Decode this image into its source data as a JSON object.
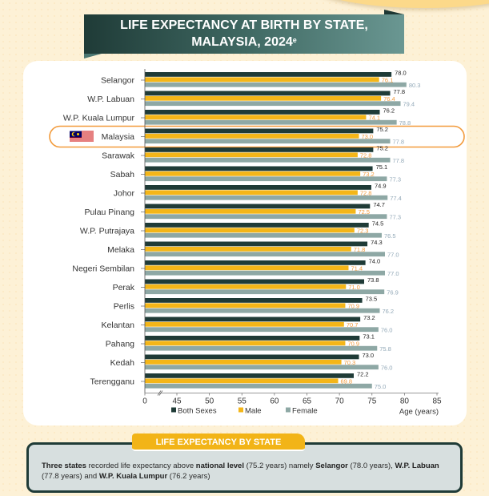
{
  "header": {
    "title_line1": "LIFE EXPECTANCY AT BIRTH BY STATE,",
    "title_line2": "MALAYSIA, 2024",
    "title_superscript": "e"
  },
  "chart_data": {
    "type": "bar",
    "orientation": "horizontal",
    "title": "LIFE EXPECTANCY AT BIRTH BY STATE, MALAYSIA, 2024e",
    "xlabel": "Age (years)",
    "ylabel": "",
    "categories": [
      "Selangor",
      "W.P. Labuan",
      "W.P. Kuala Lumpur",
      "Malaysia",
      "Sarawak",
      "Sabah",
      "Johor",
      "Pulau Pinang",
      "W.P. Putrajaya",
      "Melaka",
      "Negeri Sembilan",
      "Perak",
      "Perlis",
      "Kelantan",
      "Pahang",
      "Kedah",
      "Terengganu"
    ],
    "highlighted_category": "Malaysia",
    "series": [
      {
        "name": "Both Sexes",
        "color": "#1f3b37",
        "label_color": "#222222",
        "values": [
          78.0,
          77.8,
          76.2,
          75.2,
          75.2,
          75.1,
          74.9,
          74.7,
          74.5,
          74.3,
          74.0,
          73.8,
          73.5,
          73.2,
          73.1,
          73.0,
          72.2
        ]
      },
      {
        "name": "Male",
        "color": "#f4b618",
        "label_color": "#f29a3a",
        "values": [
          76.1,
          76.4,
          74.1,
          73.0,
          72.8,
          73.2,
          72.8,
          72.5,
          72.3,
          71.8,
          71.4,
          71.0,
          70.9,
          70.7,
          70.9,
          70.3,
          69.8
        ]
      },
      {
        "name": "Female",
        "color": "#8ea8a5",
        "label_color": "#93a9b8",
        "values": [
          80.3,
          79.4,
          78.8,
          77.8,
          77.8,
          77.3,
          77.4,
          77.3,
          76.5,
          77.0,
          77.0,
          76.9,
          76.2,
          76.0,
          75.8,
          76.0,
          75.0
        ]
      }
    ],
    "x_ticks": [
      "0",
      "45",
      "50",
      "55",
      "60",
      "65",
      "70",
      "75",
      "80",
      "85"
    ],
    "xlim": [
      0,
      85
    ],
    "axis_break": "between 0 and 45",
    "grid": false,
    "legend_position": "bottom"
  },
  "summary": {
    "tab_label": "LIFE EXPECTANCY BY STATE",
    "parts": [
      {
        "text": "Three states",
        "bold": true
      },
      {
        "text": " recorded life expectancy above ",
        "bold": false
      },
      {
        "text": "national level",
        "bold": true
      },
      {
        "text": " (75.2 years) namely ",
        "bold": false
      },
      {
        "text": "Selangor",
        "bold": true
      },
      {
        "text": " (78.0 years), ",
        "bold": false
      },
      {
        "text": "W.P. Labuan",
        "bold": true
      },
      {
        "text": " (77.8 years) and ",
        "bold": false
      },
      {
        "text": "W.P. Kuala Lumpur",
        "bold": true
      },
      {
        "text": " (76.2 years)",
        "bold": false
      }
    ]
  }
}
